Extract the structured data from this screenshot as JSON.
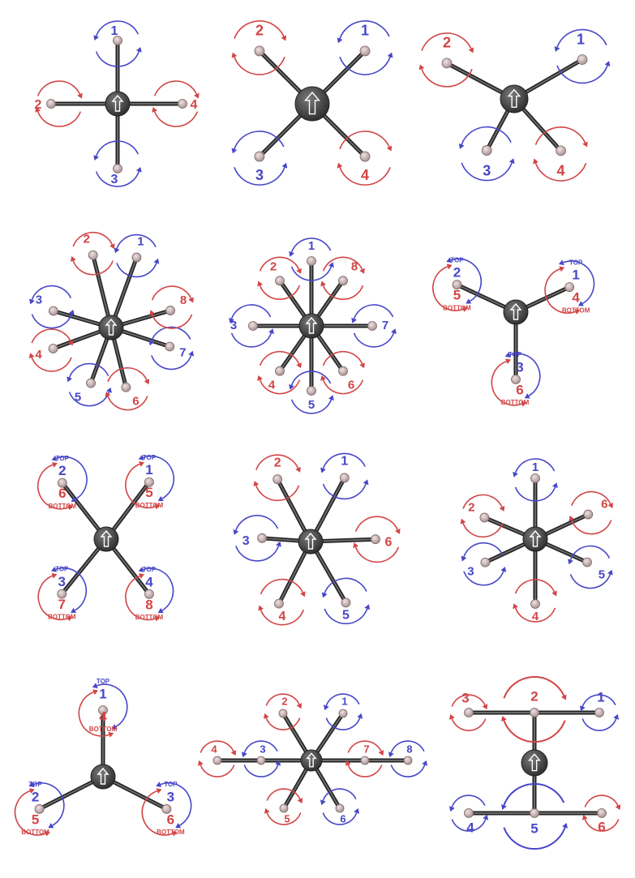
{
  "colors": {
    "cw": "#d24545",
    "ccw": "#4747c8",
    "arm": "#3a3a3a",
    "hub": "#4a4a4a",
    "motor": "#c9b2b2",
    "arrow": "#ffffff"
  },
  "labels": {
    "top": "TOP",
    "bottom": "BOTTOM"
  },
  "diagrams": [
    {
      "name": "quad-plus",
      "motors": [
        {
          "label": "1",
          "dir": "ccw"
        },
        {
          "label": "2",
          "dir": "cw"
        },
        {
          "label": "3",
          "dir": "ccw"
        },
        {
          "label": "4",
          "dir": "cw"
        }
      ]
    },
    {
      "name": "quad-x",
      "motors": [
        {
          "label": "1",
          "dir": "ccw"
        },
        {
          "label": "2",
          "dir": "cw"
        },
        {
          "label": "3",
          "dir": "ccw"
        },
        {
          "label": "4",
          "dir": "cw"
        }
      ]
    },
    {
      "name": "quad-h",
      "motors": [
        {
          "label": "1",
          "dir": "ccw"
        },
        {
          "label": "2",
          "dir": "cw"
        },
        {
          "label": "3",
          "dir": "ccw"
        },
        {
          "label": "4",
          "dir": "cw"
        }
      ]
    },
    {
      "name": "octo-x",
      "motors": [
        {
          "label": "1",
          "dir": "ccw"
        },
        {
          "label": "2",
          "dir": "cw"
        },
        {
          "label": "3",
          "dir": "ccw"
        },
        {
          "label": "4",
          "dir": "cw"
        },
        {
          "label": "5",
          "dir": "ccw"
        },
        {
          "label": "6",
          "dir": "cw"
        },
        {
          "label": "7",
          "dir": "ccw"
        },
        {
          "label": "8",
          "dir": "cw"
        }
      ]
    },
    {
      "name": "octo-plus",
      "motors": [
        {
          "label": "1",
          "dir": "ccw"
        },
        {
          "label": "2",
          "dir": "cw"
        },
        {
          "label": "3",
          "dir": "ccw"
        },
        {
          "label": "4",
          "dir": "cw"
        },
        {
          "label": "5",
          "dir": "ccw"
        },
        {
          "label": "6",
          "dir": "cw"
        },
        {
          "label": "7",
          "dir": "ccw"
        },
        {
          "label": "8",
          "dir": "cw"
        }
      ]
    },
    {
      "name": "y6-a",
      "motors": [
        {
          "label": "1",
          "dir": "ccw"
        },
        {
          "label": "2",
          "dir": "ccw"
        },
        {
          "label": "3",
          "dir": "ccw"
        },
        {
          "label": "4",
          "dir": "cw"
        },
        {
          "label": "5",
          "dir": "cw"
        },
        {
          "label": "6",
          "dir": "cw"
        }
      ]
    },
    {
      "name": "octo-quad",
      "motors": [
        {
          "label": "1",
          "dir": "ccw"
        },
        {
          "label": "2",
          "dir": "ccw"
        },
        {
          "label": "3",
          "dir": "ccw"
        },
        {
          "label": "4",
          "dir": "ccw"
        },
        {
          "label": "5",
          "dir": "cw"
        },
        {
          "label": "6",
          "dir": "cw"
        },
        {
          "label": "7",
          "dir": "cw"
        },
        {
          "label": "8",
          "dir": "cw"
        }
      ]
    },
    {
      "name": "hexa-plus",
      "motors": [
        {
          "label": "1",
          "dir": "ccw"
        },
        {
          "label": "2",
          "dir": "cw"
        },
        {
          "label": "3",
          "dir": "ccw"
        },
        {
          "label": "4",
          "dir": "cw"
        },
        {
          "label": "5",
          "dir": "ccw"
        },
        {
          "label": "6",
          "dir": "cw"
        }
      ]
    },
    {
      "name": "hexa-x",
      "motors": [
        {
          "label": "1",
          "dir": "ccw"
        },
        {
          "label": "2",
          "dir": "cw"
        },
        {
          "label": "3",
          "dir": "ccw"
        },
        {
          "label": "4",
          "dir": "cw"
        },
        {
          "label": "5",
          "dir": "ccw"
        },
        {
          "label": "6",
          "dir": "cw"
        }
      ]
    },
    {
      "name": "y6-b",
      "motors": [
        {
          "label": "1",
          "dir": "ccw"
        },
        {
          "label": "2",
          "dir": "ccw"
        },
        {
          "label": "3",
          "dir": "ccw"
        },
        {
          "label": "4",
          "dir": "cw"
        },
        {
          "label": "5",
          "dir": "cw"
        },
        {
          "label": "6",
          "dir": "cw"
        }
      ]
    },
    {
      "name": "octo-v",
      "motors": [
        {
          "label": "1",
          "dir": "ccw"
        },
        {
          "label": "2",
          "dir": "cw"
        },
        {
          "label": "3",
          "dir": "ccw"
        },
        {
          "label": "4",
          "dir": "cw"
        },
        {
          "label": "5",
          "dir": "cw"
        },
        {
          "label": "6",
          "dir": "ccw"
        },
        {
          "label": "7",
          "dir": "cw"
        },
        {
          "label": "8",
          "dir": "ccw"
        }
      ]
    },
    {
      "name": "hexa-h",
      "motors": [
        {
          "label": "1",
          "dir": "ccw"
        },
        {
          "label": "2",
          "dir": "cw"
        },
        {
          "label": "3",
          "dir": "cw"
        },
        {
          "label": "4",
          "dir": "ccw"
        },
        {
          "label": "5",
          "dir": "ccw"
        },
        {
          "label": "6",
          "dir": "cw"
        }
      ]
    }
  ]
}
